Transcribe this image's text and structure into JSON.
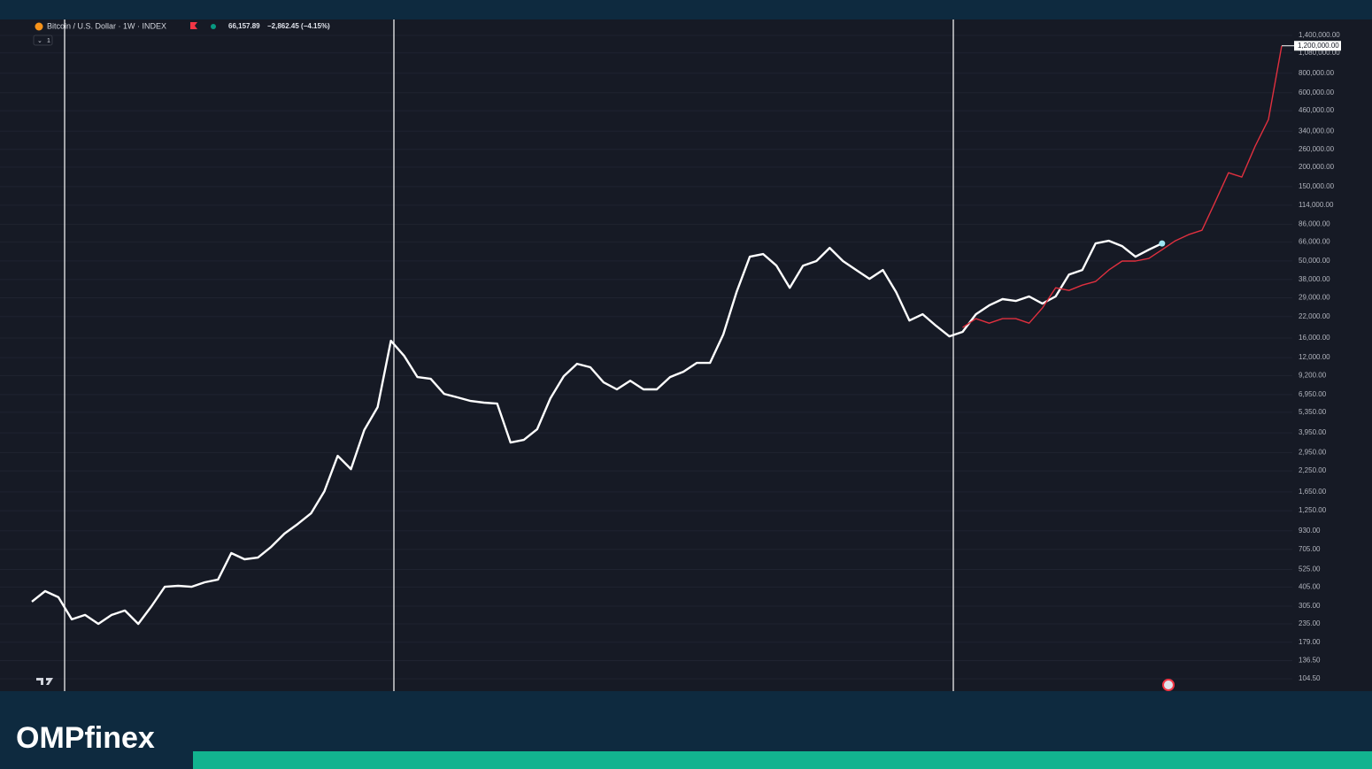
{
  "chart_data": {
    "type": "line",
    "title": "Bitcoin / U.S. Dollar · 1W · INDEX",
    "interval": "1",
    "price": "66,157.89",
    "change": "−2,862.45 (−4.15%)",
    "log_scale": true,
    "grid": true,
    "ylim": [
      87,
      1770000
    ],
    "yticks": [
      {
        "value": 104.5,
        "label": "104.50"
      },
      {
        "value": 136.5,
        "label": "136.50"
      },
      {
        "value": 179,
        "label": "179.00"
      },
      {
        "value": 235,
        "label": "235.00"
      },
      {
        "value": 305,
        "label": "305.00"
      },
      {
        "value": 405,
        "label": "405.00"
      },
      {
        "value": 525,
        "label": "525.00"
      },
      {
        "value": 705,
        "label": "705.00"
      },
      {
        "value": 930,
        "label": "930.00"
      },
      {
        "value": 1250,
        "label": "1,250.00"
      },
      {
        "value": 1650,
        "label": "1,650.00"
      },
      {
        "value": 2250,
        "label": "2,250.00"
      },
      {
        "value": 2950,
        "label": "2,950.00"
      },
      {
        "value": 3950,
        "label": "3,950.00"
      },
      {
        "value": 5350,
        "label": "5,350.00"
      },
      {
        "value": 6950,
        "label": "6,950.00"
      },
      {
        "value": 9200,
        "label": "9,200.00"
      },
      {
        "value": 12000,
        "label": "12,000.00"
      },
      {
        "value": 16000,
        "label": "16,000.00"
      },
      {
        "value": 22000,
        "label": "22,000.00"
      },
      {
        "value": 29000,
        "label": "29,000.00"
      },
      {
        "value": 38000,
        "label": "38,000.00"
      },
      {
        "value": 50000,
        "label": "50,000.00"
      },
      {
        "value": 66000,
        "label": "66,000.00"
      },
      {
        "value": 86000,
        "label": "86,000.00"
      },
      {
        "value": 114000,
        "label": "114,000.00"
      },
      {
        "value": 150000,
        "label": "150,000.00"
      },
      {
        "value": 200000,
        "label": "200,000.00"
      },
      {
        "value": 260000,
        "label": "260,000.00"
      },
      {
        "value": 340000,
        "label": "340,000.00"
      },
      {
        "value": 460000,
        "label": "460,000.00"
      },
      {
        "value": 600000,
        "label": "600,000.00"
      },
      {
        "value": 800000,
        "label": "800,000.00"
      },
      {
        "value": 1080000,
        "label": "1,080,000.00"
      },
      {
        "value": 1400000,
        "label": "1,400,000.00"
      }
    ],
    "series": [
      {
        "color": "#ffffff",
        "values": [
          326,
          381,
          348,
          251,
          268,
          235,
          268,
          286,
          235,
          305,
          406,
          412,
          406,
          434,
          452,
          668,
          610,
          625,
          733,
          891,
          1028,
          1202,
          1667,
          2812,
          2312,
          4111,
          5768,
          15380,
          12300,
          8995,
          8770,
          7015,
          6668,
          6324,
          6166,
          6081,
          3420,
          3556,
          4159,
          6577,
          9120,
          10940,
          10400,
          8318,
          7499,
          8531,
          7499,
          7499,
          8995,
          9727,
          11090,
          11090,
          16870,
          31550,
          53210,
          55340,
          46670,
          33650,
          46670,
          49890,
          60670,
          49890,
          43750,
          38370,
          43750,
          31550,
          20750,
          22750,
          19190,
          16410,
          17540,
          22750,
          25940,
          28440,
          27670,
          29580,
          26610,
          29580,
          40930,
          43750,
          64710,
          67300,
          62230,
          53210,
          59020,
          64710,
          null,
          null,
          null,
          null,
          null,
          null,
          null,
          null,
          null
        ]
      },
      {
        "color": "#e0303f",
        "values": [
          null,
          null,
          null,
          null,
          null,
          null,
          null,
          null,
          null,
          null,
          null,
          null,
          null,
          null,
          null,
          null,
          null,
          null,
          null,
          null,
          null,
          null,
          null,
          null,
          null,
          null,
          null,
          null,
          null,
          null,
          null,
          null,
          null,
          null,
          null,
          null,
          null,
          null,
          null,
          null,
          null,
          null,
          null,
          null,
          null,
          null,
          null,
          null,
          null,
          null,
          null,
          null,
          null,
          null,
          null,
          null,
          null,
          null,
          null,
          null,
          null,
          null,
          null,
          null,
          null,
          null,
          null,
          null,
          null,
          null,
          18710,
          21330,
          19950,
          21330,
          21330,
          19950,
          24950,
          33650,
          32360,
          34990,
          36900,
          43750,
          49890,
          49890,
          51880,
          59020,
          67300,
          73790,
          78700,
          119700,
          184100,
          172600,
          272300,
          403600,
          1200000
        ],
        "value_labels": [
          null,
          null,
          null,
          null,
          null,
          null,
          null,
          null,
          null,
          null,
          null,
          null,
          null,
          null,
          null,
          null,
          null,
          null,
          null,
          null,
          null,
          null,
          null,
          null,
          null,
          null,
          null,
          null,
          null,
          null,
          null,
          null,
          null,
          null,
          null,
          null,
          null,
          null,
          null,
          null,
          null,
          null,
          null,
          null,
          null,
          null,
          null,
          null,
          null,
          null,
          null,
          null,
          null,
          null,
          null,
          null,
          null,
          null,
          null,
          null,
          null,
          null,
          null,
          null,
          null,
          null,
          null,
          null,
          null,
          null,
          null,
          null,
          null,
          null,
          null,
          null,
          null,
          null,
          null,
          null,
          null,
          null,
          null,
          null,
          null,
          null,
          null,
          null,
          null,
          null,
          null,
          null,
          null,
          null,
          "1,200,000.00"
        ]
      }
    ]
  },
  "brand": "OMPfinex"
}
